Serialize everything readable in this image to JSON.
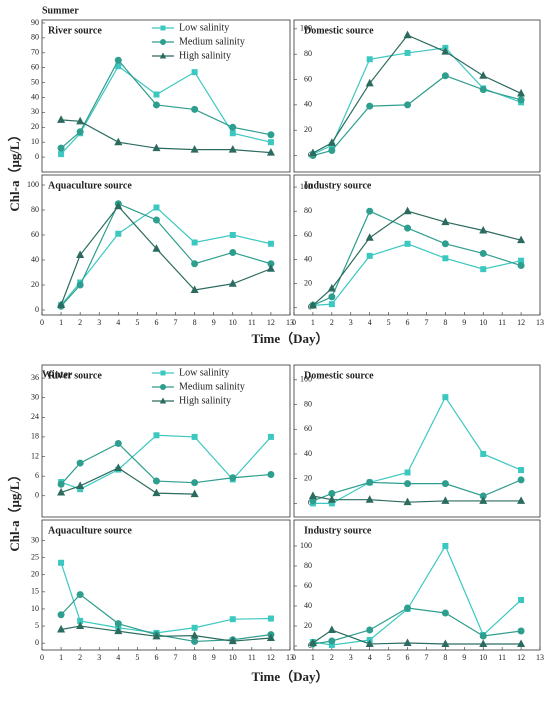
{
  "figure": {
    "sections": [
      {
        "title": "Summer",
        "y_label": "Chl-a（μg/L）",
        "x_label": "Time（Day）"
      },
      {
        "title": "Winter",
        "y_label": "Chl-a（μg/L）",
        "x_label": "Time（Day）"
      }
    ]
  },
  "chart_data": [
    {
      "type": "line",
      "section": "Summer",
      "title": "River source",
      "legend": true,
      "x": [
        1,
        2,
        4,
        6,
        8,
        10,
        12
      ],
      "xlim": [
        0,
        13
      ],
      "ylim": [
        -10,
        92
      ],
      "yticks": [
        0,
        10,
        20,
        30,
        40,
        50,
        60,
        70,
        80,
        90
      ],
      "series": [
        {
          "name": "Low salinity",
          "color": "#3cc8c0",
          "marker": "square",
          "values": [
            2,
            16,
            61,
            42,
            57,
            16,
            10
          ]
        },
        {
          "name": "Medium salinity",
          "color": "#2e9e8e",
          "marker": "circle",
          "values": [
            6,
            17,
            65,
            35,
            32,
            20,
            15
          ]
        },
        {
          "name": "High salinity",
          "color": "#2c6b5f",
          "marker": "triangle",
          "values": [
            25,
            24,
            10,
            6,
            5,
            5,
            3
          ]
        }
      ]
    },
    {
      "type": "line",
      "section": "Summer",
      "title": "Domestic source",
      "x": [
        1,
        2,
        4,
        6,
        8,
        10,
        12
      ],
      "xlim": [
        0,
        13
      ],
      "ylim": [
        -13,
        107
      ],
      "yticks": [
        0,
        20,
        40,
        60,
        80,
        100
      ],
      "series": [
        {
          "color": "#3cc8c0",
          "marker": "square",
          "values": [
            1,
            8,
            76,
            81,
            85,
            53,
            42
          ]
        },
        {
          "color": "#2e9e8e",
          "marker": "circle",
          "values": [
            0,
            4,
            39,
            40,
            63,
            52,
            44
          ]
        },
        {
          "color": "#2c6b5f",
          "marker": "triangle",
          "values": [
            2,
            10,
            57,
            95,
            82,
            63,
            49
          ]
        }
      ]
    },
    {
      "type": "line",
      "section": "Summer",
      "title": "Aquaculture source",
      "x": [
        1,
        2,
        4,
        6,
        8,
        10,
        12
      ],
      "xlim": [
        0,
        13
      ],
      "xticks": [
        0,
        1,
        2,
        3,
        4,
        5,
        6,
        7,
        8,
        9,
        10,
        11,
        12,
        13
      ],
      "ylim": [
        -4,
        108
      ],
      "yticks": [
        0,
        20,
        40,
        60,
        80,
        100
      ],
      "series": [
        {
          "color": "#3cc8c0",
          "marker": "square",
          "values": [
            4,
            22,
            61,
            82,
            54,
            60,
            53
          ]
        },
        {
          "color": "#2e9e8e",
          "marker": "circle",
          "values": [
            3,
            20,
            85,
            72,
            37,
            46,
            37
          ]
        },
        {
          "color": "#2c6b5f",
          "marker": "triangle",
          "values": [
            4,
            44,
            83,
            49,
            16,
            21,
            33
          ]
        }
      ]
    },
    {
      "type": "line",
      "section": "Summer",
      "title": "Industry source",
      "x": [
        1,
        2,
        4,
        6,
        8,
        10,
        12
      ],
      "xlim": [
        0,
        13
      ],
      "xticks": [
        0,
        1,
        2,
        3,
        4,
        5,
        6,
        7,
        8,
        9,
        10,
        11,
        12,
        13
      ],
      "ylim": [
        -6,
        110
      ],
      "yticks": [
        0,
        20,
        40,
        60,
        80,
        100
      ],
      "series": [
        {
          "color": "#3cc8c0",
          "marker": "square",
          "values": [
            2,
            3,
            43,
            53,
            41,
            32,
            39
          ]
        },
        {
          "color": "#2e9e8e",
          "marker": "circle",
          "values": [
            2,
            9,
            80,
            66,
            53,
            45,
            35
          ]
        },
        {
          "color": "#2c6b5f",
          "marker": "triangle",
          "values": [
            2,
            16,
            58,
            80,
            71,
            64,
            56
          ]
        }
      ]
    },
    {
      "type": "line",
      "section": "Winter",
      "title": "River source",
      "legend": true,
      "x": [
        1,
        2,
        4,
        6,
        8,
        10,
        12
      ],
      "xlim": [
        0,
        13
      ],
      "ylim": [
        -6.5,
        40
      ],
      "yticks": [
        0,
        6,
        12,
        18,
        24,
        30,
        36
      ],
      "series": [
        {
          "name": "Low salinity",
          "color": "#3cc8c0",
          "marker": "square",
          "values": [
            4.2,
            2,
            8,
            18.5,
            18,
            5,
            18
          ]
        },
        {
          "name": "Medium salinity",
          "color": "#2e9e8e",
          "marker": "circle",
          "values": [
            3.5,
            10,
            16,
            4.5,
            4,
            5.5,
            6.5
          ]
        },
        {
          "name": "High salinity",
          "color": "#2c6b5f",
          "marker": "triangle",
          "values": [
            1,
            3,
            8.5,
            0.8,
            0.5,
            null,
            null
          ]
        }
      ]
    },
    {
      "type": "line",
      "section": "Winter",
      "title": "Domestic source",
      "x": [
        1,
        2,
        4,
        6,
        8,
        10,
        12
      ],
      "xlim": [
        0,
        13
      ],
      "ylim": [
        -11,
        112
      ],
      "yticks": [
        0,
        20,
        40,
        60,
        80,
        100
      ],
      "series": [
        {
          "color": "#3cc8c0",
          "marker": "square",
          "values": [
            0,
            0,
            17,
            25,
            86,
            40,
            27
          ]
        },
        {
          "color": "#2e9e8e",
          "marker": "circle",
          "values": [
            2,
            8,
            17,
            16,
            16,
            6,
            19
          ]
        },
        {
          "color": "#2c6b5f",
          "marker": "triangle",
          "values": [
            6,
            3,
            3,
            1,
            2,
            2,
            2
          ]
        }
      ]
    },
    {
      "type": "line",
      "section": "Winter",
      "title": "Aquaculture source",
      "x": [
        1,
        2,
        4,
        6,
        8,
        10,
        12
      ],
      "xlim": [
        0,
        13
      ],
      "xticks": [
        0,
        1,
        2,
        3,
        4,
        5,
        6,
        7,
        8,
        9,
        10,
        11,
        12,
        13
      ],
      "ylim": [
        -2,
        36
      ],
      "yticks": [
        0,
        5,
        10,
        15,
        20,
        25,
        30
      ],
      "series": [
        {
          "color": "#3cc8c0",
          "marker": "square",
          "values": [
            23.5,
            6.5,
            4.5,
            3,
            4.5,
            7,
            7.2
          ]
        },
        {
          "color": "#2e9e8e",
          "marker": "circle",
          "values": [
            8.3,
            14.2,
            5.7,
            2.5,
            0.5,
            1,
            2.5
          ]
        },
        {
          "color": "#2c6b5f",
          "marker": "triangle",
          "values": [
            4,
            5,
            3.5,
            2,
            2.2,
            0.6,
            1.5
          ]
        }
      ]
    },
    {
      "type": "line",
      "section": "Winter",
      "title": "Industry source",
      "x": [
        1,
        2,
        4,
        6,
        8,
        10,
        12
      ],
      "xlim": [
        0,
        13
      ],
      "xticks": [
        0,
        1,
        2,
        3,
        4,
        5,
        6,
        7,
        8,
        9,
        10,
        11,
        12,
        13
      ],
      "ylim": [
        -4,
        126
      ],
      "yticks": [
        0,
        20,
        40,
        60,
        80,
        100
      ],
      "series": [
        {
          "color": "#3cc8c0",
          "marker": "square",
          "values": [
            4,
            1,
            6,
            37,
            100,
            11,
            46
          ]
        },
        {
          "color": "#2e9e8e",
          "marker": "circle",
          "values": [
            2,
            5,
            16,
            38,
            33,
            10,
            15
          ]
        },
        {
          "color": "#2c6b5f",
          "marker": "triangle",
          "values": [
            3,
            16,
            2,
            3,
            2,
            2,
            2
          ]
        }
      ]
    }
  ]
}
